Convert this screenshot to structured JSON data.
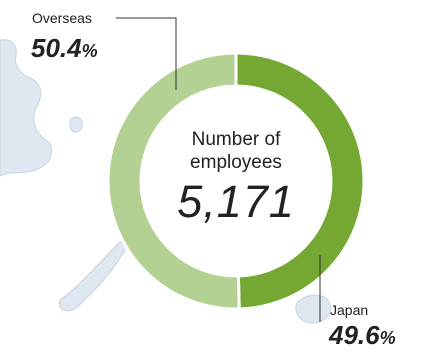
{
  "chart_data": {
    "type": "pie",
    "donut": true,
    "center": {
      "title_line1": "Number of",
      "title_line2": "employees",
      "total": "5,171"
    },
    "slices": [
      {
        "label": "Japan",
        "value": 49.6,
        "display": "49.6",
        "unit": "%",
        "color": "#74a832"
      },
      {
        "label": "Overseas",
        "value": 50.4,
        "display": "50.4",
        "unit": "%",
        "color": "#b3d193"
      }
    ]
  },
  "colors": {
    "background_map": "#dfe8f1",
    "map_coast": "#c7d4e1",
    "leader_line": "#333333"
  }
}
